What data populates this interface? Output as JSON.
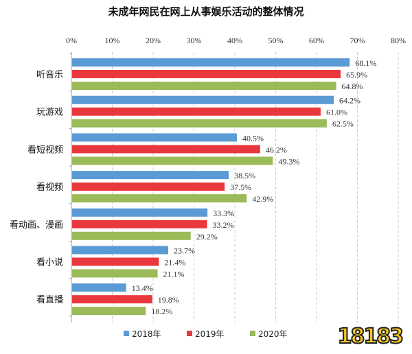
{
  "chart_data": {
    "type": "bar",
    "orientation": "horizontal",
    "title": "未成年网民在网上从事娱乐活动的整体情况",
    "categories": [
      "听音乐",
      "玩游戏",
      "看短视频",
      "看视频",
      "看动画、漫画",
      "看小说",
      "看直播"
    ],
    "series": [
      {
        "name": "2018年",
        "color": "#5b9bd5",
        "values": [
          68.1,
          64.2,
          40.5,
          38.5,
          33.3,
          23.7,
          13.4
        ]
      },
      {
        "name": "2019年",
        "color": "#e8383d",
        "values": [
          65.9,
          61.0,
          46.2,
          37.5,
          33.2,
          21.4,
          19.8
        ]
      },
      {
        "name": "2020年",
        "color": "#9bbb59",
        "values": [
          64.8,
          62.5,
          49.3,
          42.9,
          29.2,
          21.1,
          18.2
        ]
      }
    ],
    "xlim": [
      0,
      80
    ],
    "xticks": [
      "0%",
      "10%",
      "20%",
      "30%",
      "40%",
      "50%",
      "60%",
      "70%",
      "80%"
    ],
    "axis_position": "top",
    "grid": "vertical dashed",
    "legend_position": "bottom",
    "value_suffix": "%"
  },
  "logo_text": "18183"
}
